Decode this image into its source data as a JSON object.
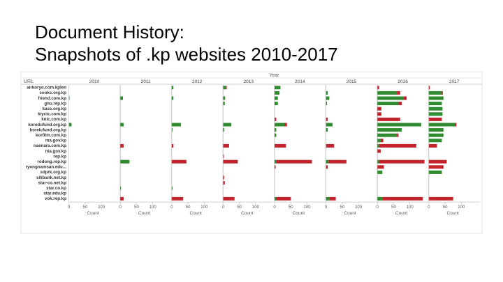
{
  "slide": {
    "title_line1": "Document History:",
    "title_line2": "Snapshots of .kp websites 2010-2017"
  },
  "chart_data": {
    "type": "bar",
    "orientation": "horizontal",
    "layout": "small-multiples",
    "column_header": "Year",
    "row_header": "URL",
    "panels": [
      "2010",
      "2011",
      "2012",
      "2013",
      "2014",
      "2015",
      "2016",
      "2017"
    ],
    "categories": [
      "airkoryo.com.kplen",
      "cooks.org.kp",
      "friend.com.kp",
      "gnu.rep.kp",
      "kass.org.kp",
      "kiyctc.com.kp",
      "knic.com.kp",
      "koredufund.org.kp",
      "korelcfund.org.kp",
      "korfilm.com.kp",
      "ma.gov.kp",
      "naenara.com.kp",
      "nta.gov.kp",
      "rep.kp",
      "rodong.rep.kp",
      "ryongnamsan.edu...",
      "sdprk.org.kp",
      "silibank.net.kp",
      "star-co.net.kp",
      "star.co.kp",
      "star.edu.kp",
      "vok.rep.kp"
    ],
    "xlabel": "Count",
    "xticks": [
      0,
      50,
      100
    ],
    "xlim": [
      0,
      150
    ],
    "colors": {
      "green": "#2e8b2e",
      "red": "#c4232b"
    },
    "series": [
      {
        "panel": "2010",
        "green": [
          0,
          0,
          2,
          0,
          0,
          0,
          0,
          8,
          0,
          0,
          0,
          0,
          0,
          0,
          0,
          0,
          0,
          0,
          0,
          0,
          0,
          0
        ],
        "red": [
          0,
          0,
          0,
          0,
          0,
          0,
          0,
          0,
          0,
          0,
          0,
          0,
          0,
          0,
          0,
          0,
          0,
          0,
          0,
          0,
          0,
          0
        ]
      },
      {
        "panel": "2011",
        "green": [
          0,
          0,
          8,
          0,
          0,
          0,
          0,
          10,
          0,
          0,
          0,
          0,
          0,
          0,
          28,
          0,
          0,
          0,
          0,
          2,
          0,
          0
        ],
        "red": [
          0,
          0,
          0,
          0,
          0,
          0,
          0,
          0,
          0,
          0,
          0,
          10,
          0,
          0,
          0,
          0,
          0,
          0,
          0,
          0,
          0,
          10
        ]
      },
      {
        "panel": "2012",
        "green": [
          5,
          0,
          5,
          0,
          0,
          0,
          0,
          28,
          2,
          0,
          0,
          0,
          0,
          0,
          0,
          0,
          0,
          0,
          0,
          2,
          0,
          0
        ],
        "red": [
          0,
          0,
          0,
          0,
          0,
          0,
          0,
          0,
          0,
          0,
          0,
          5,
          0,
          0,
          45,
          0,
          0,
          0,
          0,
          0,
          0,
          35
        ]
      },
      {
        "panel": "2013",
        "green": [
          8,
          0,
          6,
          5,
          0,
          0,
          0,
          25,
          3,
          0,
          0,
          0,
          0,
          0,
          0,
          0,
          0,
          0,
          0,
          0,
          0,
          0
        ],
        "red": [
          3,
          0,
          0,
          0,
          0,
          0,
          0,
          0,
          0,
          0,
          0,
          18,
          0,
          2,
          45,
          0,
          0,
          3,
          5,
          0,
          0,
          35
        ]
      },
      {
        "panel": "2014",
        "green": [
          18,
          15,
          10,
          10,
          0,
          0,
          0,
          30,
          5,
          5,
          0,
          0,
          0,
          0,
          5,
          0,
          0,
          0,
          0,
          0,
          0,
          5
        ],
        "red": [
          0,
          0,
          0,
          0,
          0,
          0,
          5,
          8,
          0,
          0,
          0,
          35,
          0,
          0,
          110,
          3,
          0,
          0,
          0,
          0,
          0,
          45
        ]
      },
      {
        "panel": "2015",
        "green": [
          0,
          5,
          10,
          3,
          0,
          0,
          0,
          20,
          5,
          0,
          0,
          0,
          0,
          0,
          8,
          0,
          0,
          0,
          0,
          0,
          0,
          10
        ],
        "red": [
          0,
          0,
          0,
          0,
          0,
          0,
          5,
          0,
          0,
          0,
          0,
          25,
          0,
          0,
          55,
          5,
          0,
          0,
          0,
          0,
          0,
          20
        ]
      },
      {
        "panel": "2016",
        "green": [
          0,
          60,
          80,
          65,
          0,
          0,
          0,
          135,
          75,
          60,
          10,
          5,
          0,
          0,
          5,
          0,
          15,
          0,
          0,
          0,
          0,
          15
        ],
        "red": [
          5,
          10,
          10,
          10,
          12,
          12,
          70,
          0,
          0,
          5,
          8,
          115,
          10,
          0,
          140,
          20,
          0,
          0,
          0,
          0,
          0,
          125
        ]
      },
      {
        "panel": "2017",
        "green": [
          0,
          40,
          45,
          40,
          42,
          42,
          0,
          80,
          45,
          45,
          40,
          0,
          0,
          0,
          0,
          0,
          40,
          0,
          0,
          0,
          0,
          0
        ],
        "red": [
          3,
          3,
          0,
          0,
          0,
          0,
          40,
          5,
          0,
          0,
          0,
          25,
          0,
          0,
          55,
          45,
          0,
          0,
          0,
          0,
          0,
          75
        ]
      }
    ]
  }
}
